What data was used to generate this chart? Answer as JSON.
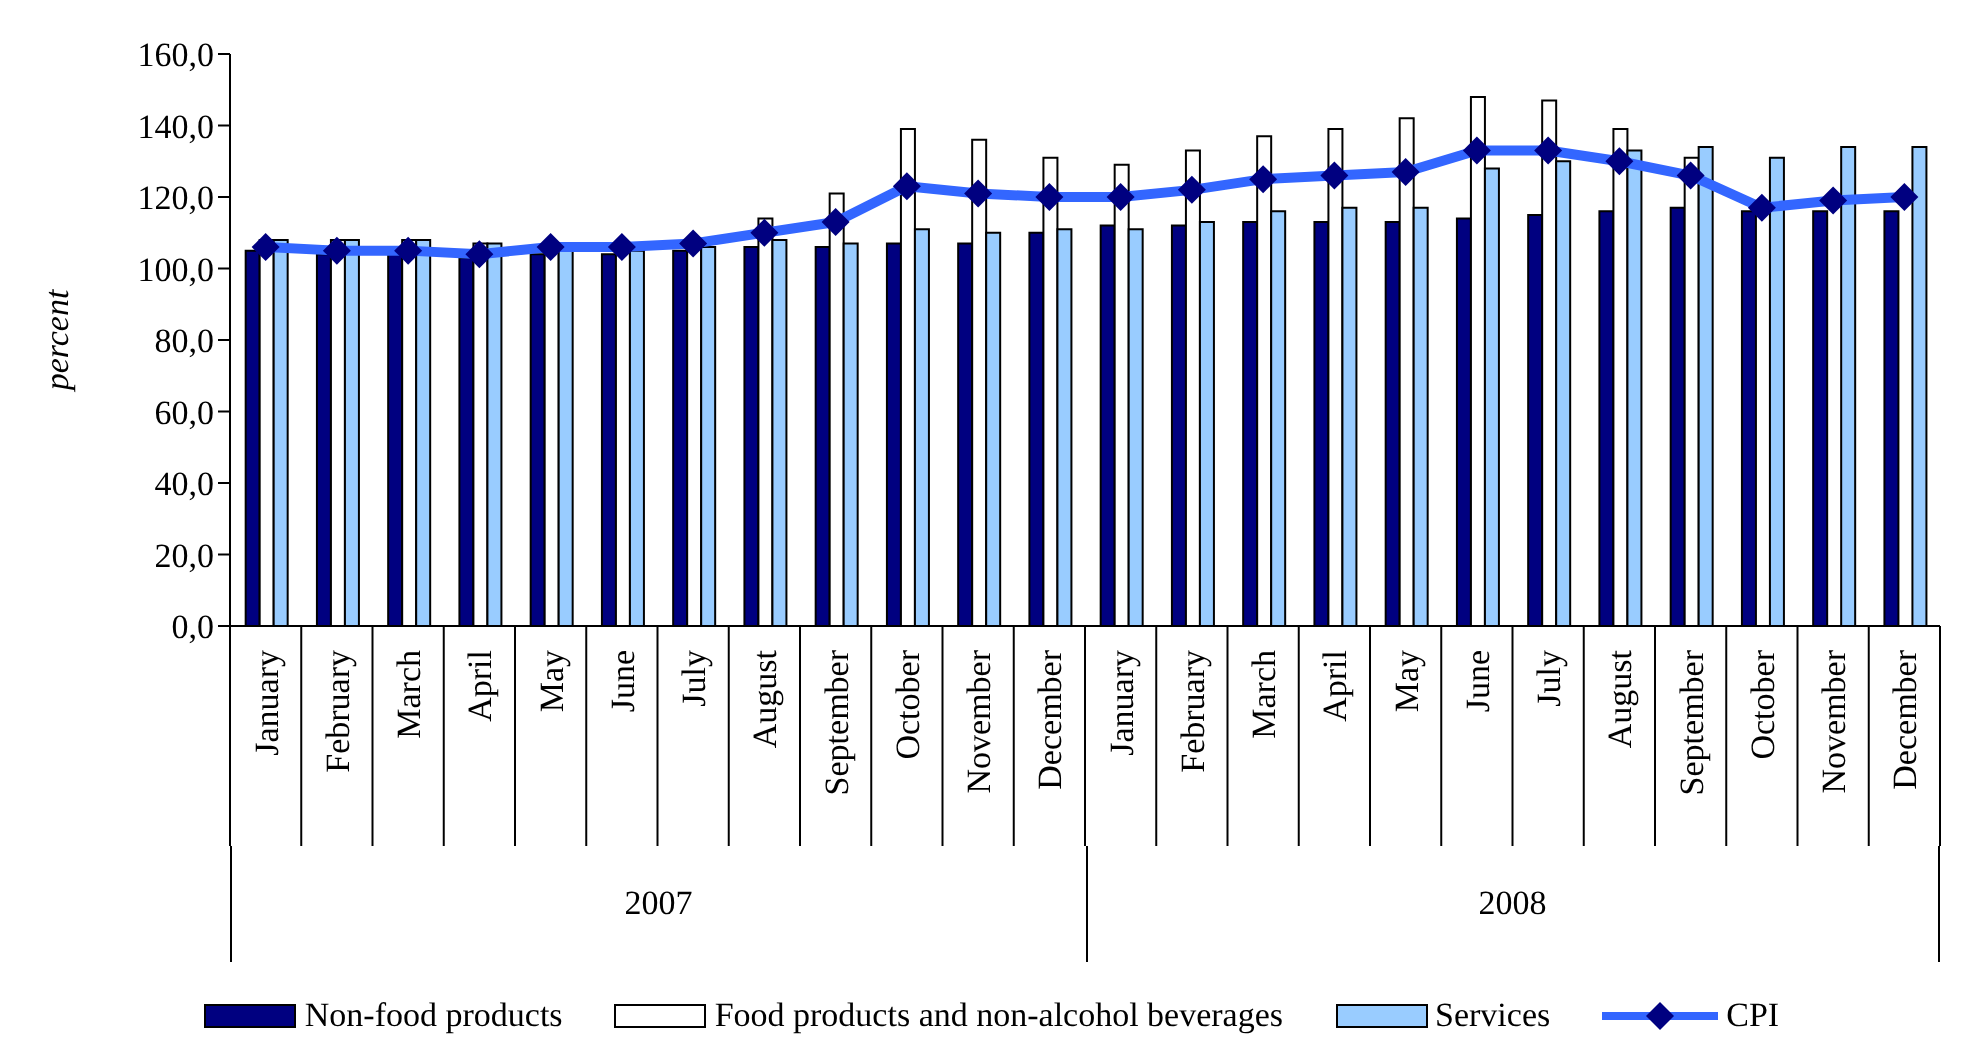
{
  "chart_data": {
    "type": "bar",
    "ylabel": "percent",
    "categories": [
      "January",
      "February",
      "March",
      "April",
      "May",
      "June",
      "July",
      "August",
      "September",
      "October",
      "November",
      "December",
      "January",
      "February",
      "March",
      "April",
      "May",
      "June",
      "July",
      "August",
      "September",
      "October",
      "November",
      "December"
    ],
    "annotations": [
      "2007",
      "2008"
    ],
    "series": [
      {
        "name": "Non-food products",
        "color": "#000080",
        "values": [
          105,
          104,
          104,
          103,
          104,
          104,
          105,
          106,
          106,
          107,
          107,
          110,
          112,
          112,
          113,
          113,
          113,
          114,
          115,
          116,
          117,
          116,
          116,
          116
        ]
      },
      {
        "name": "Food products and non-alcohol beverages",
        "color": "#ffffff",
        "values": [
          108,
          108,
          108,
          107,
          106,
          105,
          106,
          114,
          121,
          139,
          136,
          131,
          129,
          133,
          137,
          139,
          142,
          148,
          147,
          139,
          131,
          null,
          null,
          null
        ]
      },
      {
        "name": "Services",
        "color": "#99ccff",
        "values": [
          108,
          108,
          108,
          107,
          106,
          105,
          106,
          108,
          107,
          111,
          110,
          111,
          111,
          113,
          116,
          117,
          117,
          128,
          130,
          133,
          134,
          131,
          134,
          134
        ]
      },
      {
        "name": "CPI",
        "type": "line",
        "color": "#3366ff",
        "values": [
          106,
          105,
          105,
          104,
          106,
          106,
          107,
          110,
          113,
          123,
          121,
          120,
          120,
          122,
          125,
          126,
          127,
          133,
          133,
          130,
          126,
          117,
          119,
          120
        ]
      }
    ],
    "ylim": [
      0,
      160
    ],
    "yticks": [
      {
        "value": 0,
        "label": "0,0"
      },
      {
        "value": 20,
        "label": "20,0"
      },
      {
        "value": 40,
        "label": "40,0"
      },
      {
        "value": 60,
        "label": "60,0"
      },
      {
        "value": 80,
        "label": "80,0"
      },
      {
        "value": 100,
        "label": "100,0"
      },
      {
        "value": 120,
        "label": "120,0"
      },
      {
        "value": 140,
        "label": "140,0"
      },
      {
        "value": 160,
        "label": "160,0"
      }
    ],
    "marker": "diamond",
    "legend": "bottom"
  }
}
